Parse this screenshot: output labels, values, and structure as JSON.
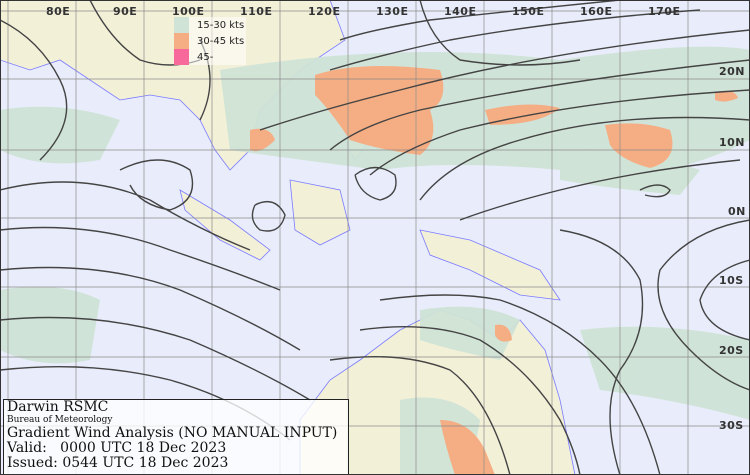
{
  "map": {
    "longitude_labels": [
      "80E",
      "90E",
      "100E",
      "110E",
      "120E",
      "130E",
      "140E",
      "150E",
      "160E",
      "170E"
    ],
    "latitude_labels": [
      "20N",
      "10N",
      "0N",
      "10S",
      "20S",
      "30S"
    ],
    "colors": {
      "ocean": "#e9edfb",
      "land": "#f3f0d8",
      "coastline": "#7b7bff",
      "grid": "#777777",
      "streamline": "#444444"
    }
  },
  "legend": {
    "items": [
      {
        "label": "15-30 kts",
        "color": "#cfe3d6"
      },
      {
        "label": "30-45 kts",
        "color": "#f5ae84"
      },
      {
        "label": "45-",
        "color": "#f7699b"
      }
    ]
  },
  "info": {
    "center": "Darwin RSMC",
    "agency": "Bureau of Meteorology",
    "product": "Gradient Wind Analysis (NO MANUAL INPUT)",
    "valid": "Valid:   0000 UTC 18 Dec 2023",
    "issued": "Issued: 0544 UTC 18 Dec 2023"
  }
}
